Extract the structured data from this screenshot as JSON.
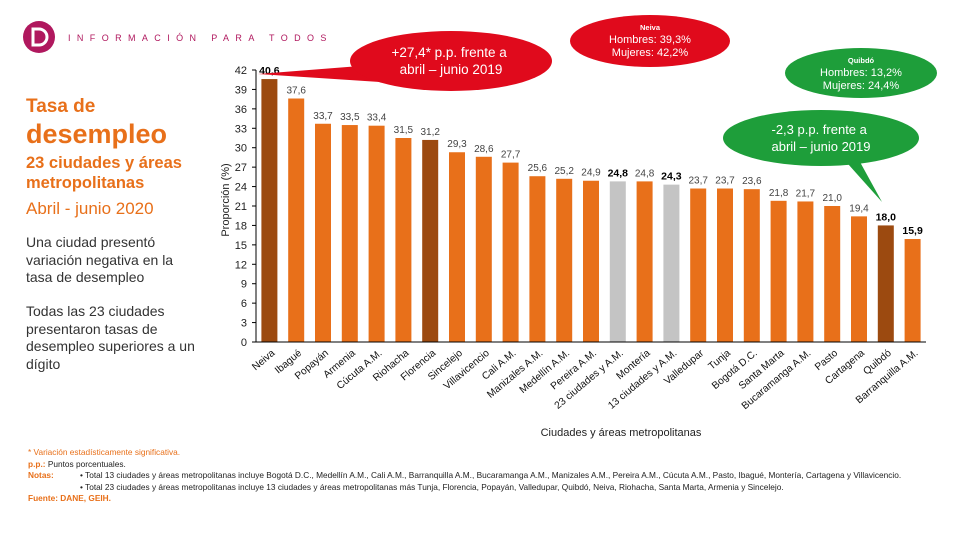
{
  "header": {
    "tagline": "INFORMACIÓN PARA TODOS"
  },
  "sidebar": {
    "title_line1": "Tasa de",
    "title_line2": "desempleo",
    "title_line3": "23 ciudades y áreas metropolitanas",
    "period": "Abril - junio 2020",
    "paragraph1": "Una ciudad presentó variación negativa en la tasa de desempleo",
    "paragraph2": "Todas las 23 ciudades presentaron tasas de desempleo superiores a un dígito"
  },
  "callouts": {
    "national_change": "+27,4* p.p. frente a abril – junio 2019",
    "neiva_title": "Neiva",
    "neiva_men": "Hombres: 39,3%",
    "neiva_women": "Mujeres: 42,2%",
    "quibdo_title": "Quibdó",
    "quibdo_men": "Hombres: 13,2%",
    "quibdo_women": "Mujeres: 24,4%",
    "quibdo_change": "-2,3 p.p. frente a abril – junio 2019"
  },
  "colors": {
    "orange": "#e8701a",
    "brown": "#9c4a10",
    "gray": "#c4c4c4",
    "red_callout": "#e00a1c",
    "green_callout": "#1e9e3a"
  },
  "chart_data": {
    "type": "bar",
    "xlabel": "Ciudades y áreas metropolitanas",
    "ylabel": "Proporción (%)",
    "ylim": [
      0,
      42
    ],
    "yticks": [
      0,
      3,
      6,
      9,
      12,
      15,
      18,
      21,
      24,
      27,
      30,
      33,
      36,
      39,
      42
    ],
    "categories": [
      "Neiva",
      "Ibagué",
      "Popayán",
      "Armenia",
      "Cúcuta A.M.",
      "Riohacha",
      "Florencia",
      "Sincelejo",
      "Villavicencio",
      "Cali A.M.",
      "Manizales A.M.",
      "Medellín A.M.",
      "Pereira A.M.",
      "23 ciudades y A.M.",
      "Montería",
      "13 ciudades y A.M.",
      "Valledupar",
      "Tunja",
      "Bogotá D.C.",
      "Santa Marta",
      "Bucaramanga A.M.",
      "Pasto",
      "Cartagena",
      "Quibdó",
      "Barranquilla A.M."
    ],
    "values": [
      40.6,
      37.6,
      33.7,
      33.5,
      33.4,
      31.5,
      31.2,
      29.3,
      28.6,
      27.7,
      25.6,
      25.2,
      24.9,
      24.8,
      24.8,
      24.3,
      23.7,
      23.7,
      23.6,
      21.8,
      21.7,
      21.0,
      19.4,
      18.0,
      15.9
    ],
    "value_labels": [
      "40,6",
      "37,6",
      "33,7",
      "33,5",
      "33,4",
      "31,5",
      "31,2",
      "29,3",
      "28,6",
      "27,7",
      "25,6",
      "25,2",
      "24,9",
      "24,8",
      "24,8",
      "24,3",
      "23,7",
      "23,7",
      "23,6",
      "21,8",
      "21,7",
      "21,0",
      "19,4",
      "18,0",
      "15,9"
    ],
    "bar_colors": [
      "#9c4a10",
      "#e8701a",
      "#e8701a",
      "#e8701a",
      "#e8701a",
      "#e8701a",
      "#9c4a10",
      "#e8701a",
      "#e8701a",
      "#e8701a",
      "#e8701a",
      "#e8701a",
      "#e8701a",
      "#c4c4c4",
      "#e8701a",
      "#c4c4c4",
      "#e8701a",
      "#e8701a",
      "#e8701a",
      "#e8701a",
      "#e8701a",
      "#e8701a",
      "#e8701a",
      "#9c4a10",
      "#e8701a"
    ],
    "bold_labels": [
      "Neiva",
      "23 ciudades y A.M.",
      "13 ciudades y A.M.",
      "Quibdó",
      "Barranquilla A.M."
    ]
  },
  "notes": {
    "significance": "* Variación estadísticamente significativa.",
    "pp_label": "p.p.:",
    "pp_text": "Puntos porcentuales.",
    "notes_label": "Notas:",
    "note1": "• Total 13 ciudades y áreas metropolitanas incluye Bogotá D.C., Medellín A.M., Cali A.M., Barranquilla A.M., Bucaramanga A.M., Manizales A.M., Pereira A.M., Cúcuta A.M., Pasto, Ibagué, Montería, Cartagena y Villavicencio.",
    "note2": "• Total 23 ciudades y áreas metropolitanas incluye 13 ciudades y áreas metropolitanas más Tunja, Florencia, Popayán, Valledupar, Quibdó, Neiva, Riohacha, Santa Marta, Armenia y Sincelejo.",
    "source": "Fuente: DANE, GEIH."
  }
}
